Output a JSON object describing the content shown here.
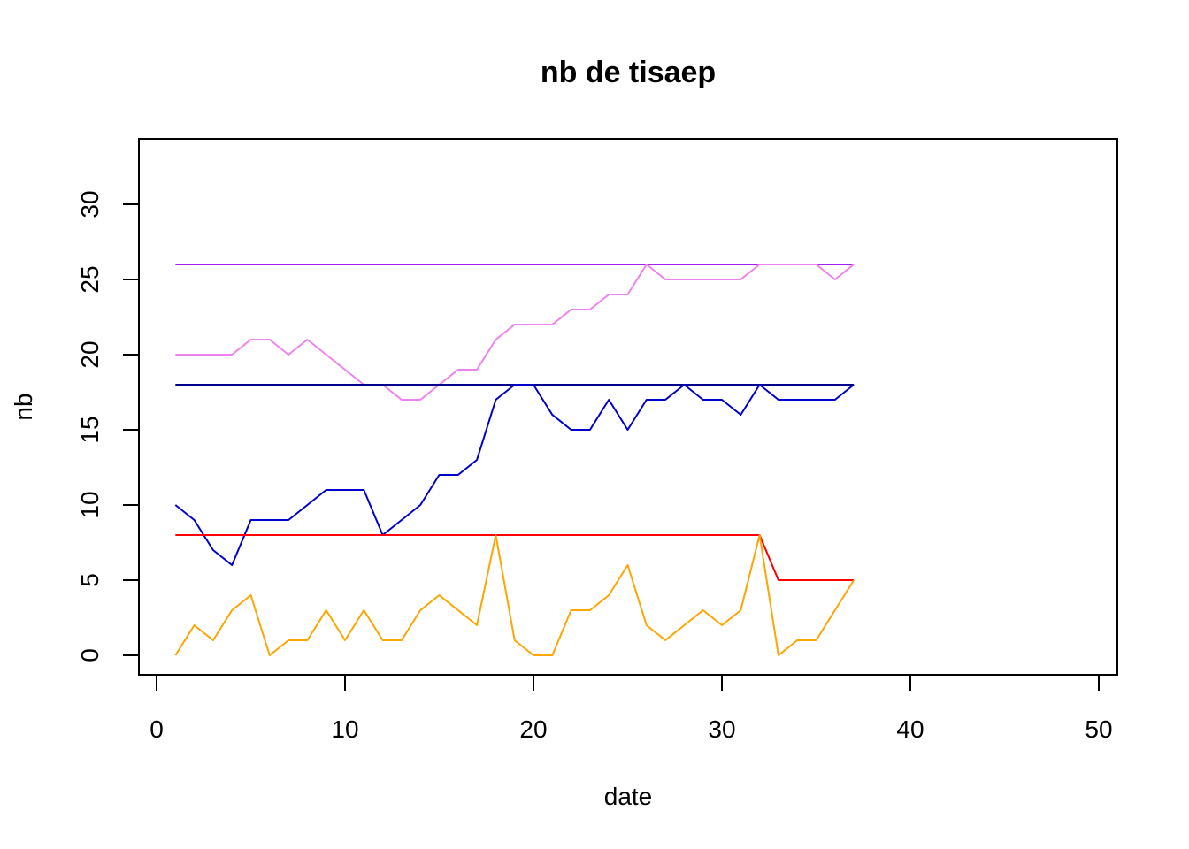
{
  "chart_data": {
    "type": "line",
    "title": "nb de tisaep",
    "xlabel": "date",
    "ylabel": "nb",
    "xlim": [
      0,
      50
    ],
    "ylim": [
      -1.2,
      34.5
    ],
    "xticks": [
      0,
      10,
      20,
      30,
      40,
      50
    ],
    "yticks": [
      0,
      5,
      10,
      15,
      20,
      25,
      30
    ],
    "grid": false,
    "legend": "none",
    "x": [
      1,
      2,
      3,
      4,
      5,
      6,
      7,
      8,
      9,
      10,
      11,
      12,
      13,
      14,
      15,
      16,
      17,
      18,
      19,
      20,
      21,
      22,
      23,
      24,
      25,
      26,
      27,
      28,
      29,
      30,
      31,
      32,
      33,
      34,
      35,
      36,
      37
    ],
    "series": [
      {
        "color": "#A020F0",
        "values": [
          26,
          26,
          26,
          26,
          26,
          26,
          26,
          26,
          26,
          26,
          26,
          26,
          26,
          26,
          26,
          26,
          26,
          26,
          26,
          26,
          26,
          26,
          26,
          26,
          26,
          26,
          26,
          26,
          26,
          26,
          26,
          26,
          26,
          26,
          26,
          26,
          26
        ]
      },
      {
        "color": "#EE82EE",
        "values": [
          20,
          20,
          20,
          20,
          21,
          21,
          20,
          21,
          20,
          19,
          18,
          18,
          17,
          17,
          18,
          19,
          19,
          21,
          22,
          22,
          22,
          23,
          23,
          24,
          24,
          26,
          25,
          25,
          25,
          25,
          25,
          26,
          26,
          26,
          26,
          25,
          26
        ]
      },
      {
        "color": "#00008B",
        "values": [
          18,
          18,
          18,
          18,
          18,
          18,
          18,
          18,
          18,
          18,
          18,
          18,
          18,
          18,
          18,
          18,
          18,
          18,
          18,
          18,
          18,
          18,
          18,
          18,
          18,
          18,
          18,
          18,
          18,
          18,
          18,
          18,
          18,
          18,
          18,
          18,
          18
        ]
      },
      {
        "color": "#0000CD",
        "values": [
          10,
          9,
          7,
          6,
          9,
          9,
          9,
          10,
          11,
          11,
          11,
          8,
          9,
          10,
          12,
          12,
          13,
          17,
          18,
          18,
          16,
          15,
          15,
          17,
          15,
          17,
          17,
          18,
          17,
          17,
          16,
          18,
          17,
          17,
          17,
          17,
          18
        ]
      },
      {
        "color": "#FF0000",
        "values": [
          8,
          8,
          8,
          8,
          8,
          8,
          8,
          8,
          8,
          8,
          8,
          8,
          8,
          8,
          8,
          8,
          8,
          8,
          8,
          8,
          8,
          8,
          8,
          8,
          8,
          8,
          8,
          8,
          8,
          8,
          8,
          8,
          5,
          5,
          5,
          5,
          5
        ]
      },
      {
        "color": "#FFA500",
        "values": [
          0,
          2,
          1,
          3,
          4,
          0,
          1,
          1,
          3,
          1,
          3,
          1,
          1,
          3,
          4,
          3,
          2,
          8,
          1,
          0,
          0,
          3,
          3,
          4,
          6,
          2,
          1,
          2,
          3,
          2,
          3,
          8,
          0,
          1,
          1,
          3,
          5
        ]
      }
    ]
  }
}
